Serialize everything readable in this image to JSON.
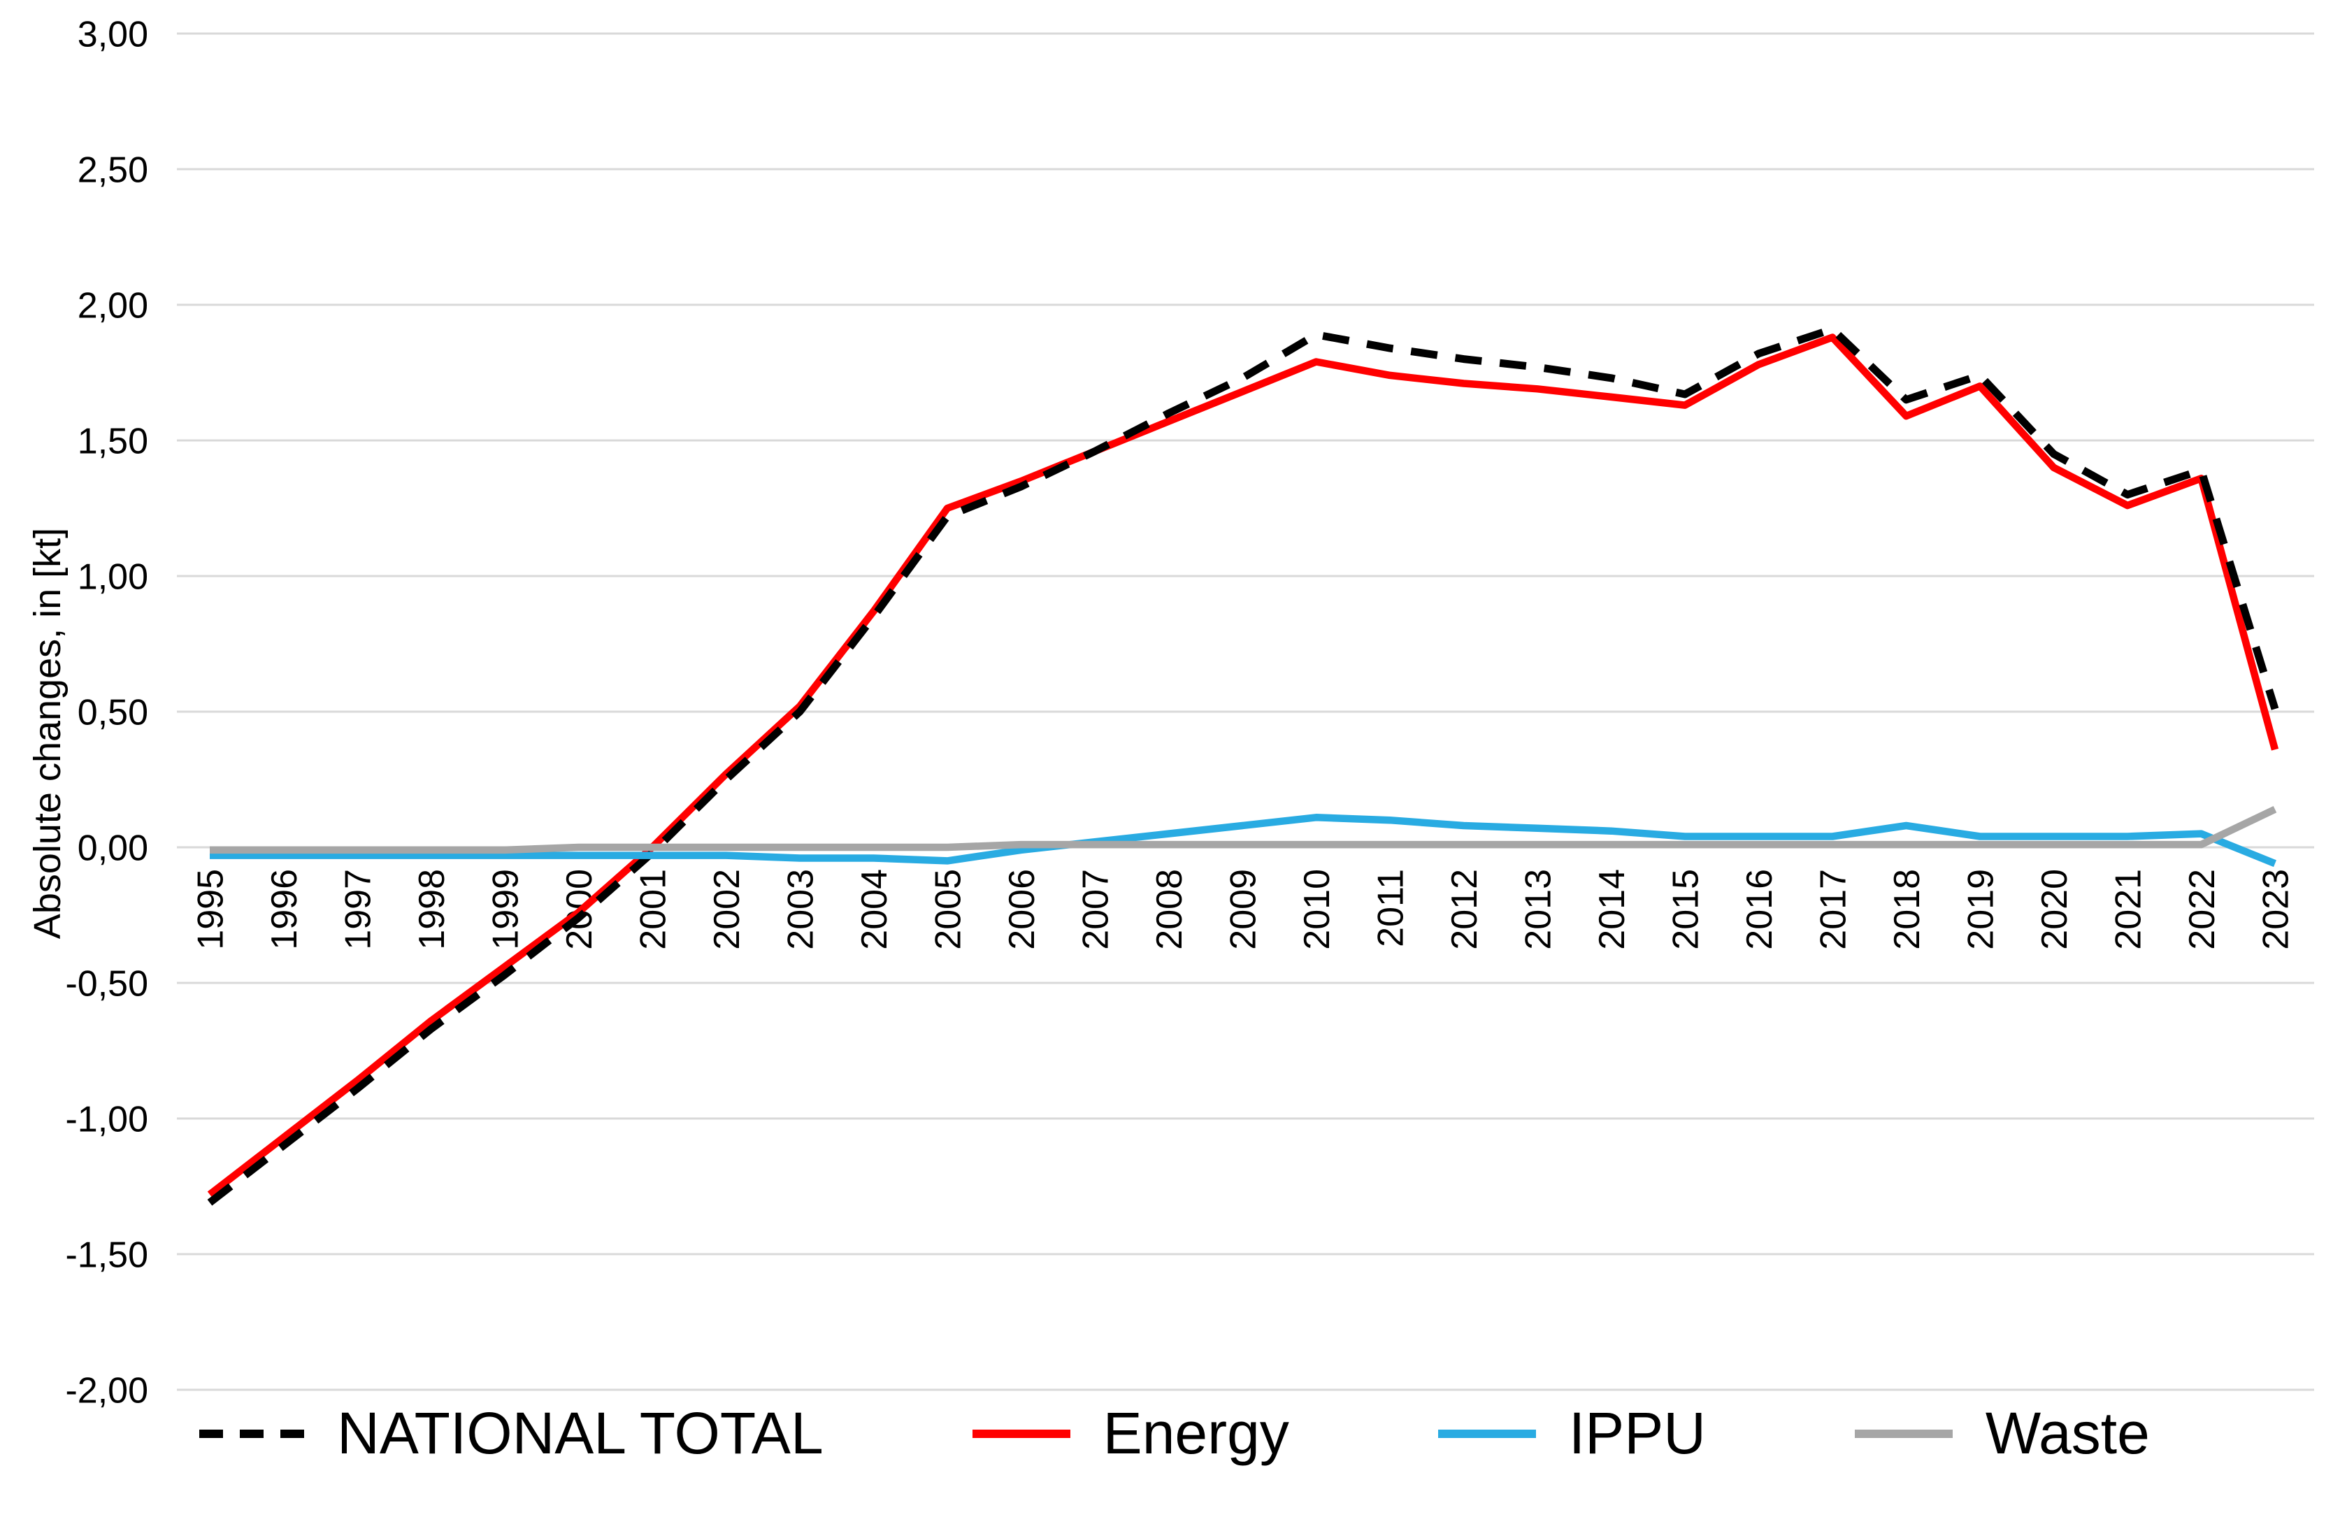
{
  "chart_data": {
    "type": "line",
    "title": "",
    "xlabel": "",
    "ylabel": "Absolute changes, in [kt]",
    "categories": [
      "1995",
      "1996",
      "1997",
      "1998",
      "1999",
      "2000",
      "2001",
      "2002",
      "2003",
      "2004",
      "2005",
      "2006",
      "2007",
      "2008",
      "2009",
      "2010",
      "2011",
      "2012",
      "2013",
      "2014",
      "2015",
      "2016",
      "2017",
      "2018",
      "2019",
      "2020",
      "2021",
      "2022",
      "2023"
    ],
    "ylim": [
      -2.0,
      3.0
    ],
    "ytick_step": 0.5,
    "ytick_labels": [
      "3,00",
      "2,50",
      "2,00",
      "1,50",
      "1,00",
      "0,50",
      "0,00",
      "-0,50",
      "-1,00",
      "-1,50",
      "-2,00"
    ],
    "grid": true,
    "legend_position": "bottom",
    "background_color": "#FFFFFF",
    "gridline_color": "#D9D9D9",
    "text_color": "#000000",
    "series": [
      {
        "name": "NATIONAL TOTAL",
        "color": "#000000",
        "line_style": "dashed",
        "values": [
          -1.31,
          -1.1,
          -0.89,
          -0.67,
          -0.47,
          -0.26,
          -0.02,
          0.25,
          0.5,
          0.85,
          1.22,
          1.33,
          1.46,
          1.6,
          1.73,
          1.89,
          1.84,
          1.8,
          1.77,
          1.73,
          1.67,
          1.82,
          1.91,
          1.65,
          1.74,
          1.45,
          1.3,
          1.39,
          0.51
        ]
      },
      {
        "name": "Energy",
        "color": "#FF0000",
        "line_style": "solid",
        "values": [
          -1.28,
          -1.07,
          -0.86,
          -0.64,
          -0.44,
          -0.24,
          0.0,
          0.27,
          0.52,
          0.87,
          1.25,
          1.35,
          1.46,
          1.57,
          1.68,
          1.79,
          1.74,
          1.71,
          1.69,
          1.66,
          1.63,
          1.78,
          1.88,
          1.59,
          1.7,
          1.4,
          1.26,
          1.36,
          0.36
        ]
      },
      {
        "name": "IPPU",
        "color": "#29ABE2",
        "line_style": "solid",
        "values": [
          -0.03,
          -0.03,
          -0.03,
          -0.03,
          -0.03,
          -0.03,
          -0.03,
          -0.03,
          -0.04,
          -0.04,
          -0.05,
          -0.01,
          0.02,
          0.05,
          0.08,
          0.11,
          0.1,
          0.08,
          0.07,
          0.06,
          0.04,
          0.04,
          0.04,
          0.08,
          0.04,
          0.04,
          0.04,
          0.05,
          -0.06
        ]
      },
      {
        "name": "Waste",
        "color": "#A6A6A6",
        "line_style": "solid",
        "values": [
          -0.01,
          -0.01,
          -0.01,
          -0.01,
          -0.01,
          0.0,
          0.0,
          0.0,
          0.0,
          0.0,
          0.0,
          0.01,
          0.01,
          0.01,
          0.01,
          0.01,
          0.01,
          0.01,
          0.01,
          0.01,
          0.01,
          0.01,
          0.01,
          0.01,
          0.01,
          0.01,
          0.01,
          0.01,
          0.14
        ]
      }
    ]
  }
}
